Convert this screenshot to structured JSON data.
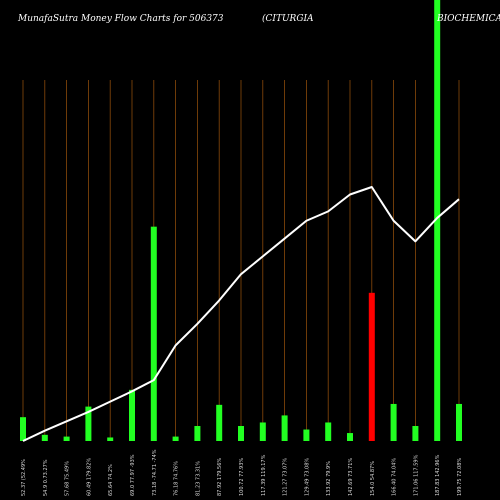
{
  "chart_data": {
    "type": "bar",
    "title_left": "MunafaSutra  Money Flow  Charts for 506373",
    "title_mid": "(CITURGIA",
    "title_right": "BIOCHEMICALS",
    "colors": {
      "background": "#000000",
      "grid": "#8a4a0a",
      "up": "#22ff22",
      "down": "#ff0000",
      "line": "#ffffff",
      "text": "#ffffff"
    },
    "categories": [
      "52.37 (52.49%",
      "54.9  0.73.27%",
      "57.68 75.49%",
      "60.49 179.82%",
      "65.64 74.2%",
      "69.0 77.97 -93%",
      "73.18 -74.71 -74%",
      "76.18 74.76%",
      "81.23 73.31%",
      "87.92 179.56%",
      "100.72 77.93%",
      "117.39 119.17%",
      "121.27 73.07%",
      "129.49 73.08%",
      "133.92 79.9%",
      "142.69 73.71%",
      "154.0 54.87%",
      "166.40 74.04%",
      "171.06 117.59%",
      "187.83 142.96%",
      "199.75 72.08%"
    ],
    "bar_values": [
      27,
      7,
      5,
      39,
      4,
      58,
      243,
      5,
      17,
      41,
      17,
      21,
      29,
      13,
      21,
      9,
      168,
      42,
      17,
      500,
      42
    ],
    "bar_direction": [
      "up",
      "up",
      "up",
      "up",
      "up",
      "up",
      "up",
      "up",
      "up",
      "up",
      "up",
      "up",
      "up",
      "up",
      "up",
      "up",
      "down",
      "up",
      "up",
      "up",
      "up"
    ],
    "line_values": [
      0,
      11,
      21,
      31,
      42,
      53,
      65,
      102,
      125,
      150,
      178,
      197,
      216,
      235,
      245,
      263,
      271,
      235,
      213,
      238,
      258
    ],
    "ylim": [
      0,
      500
    ],
    "grid": true
  }
}
